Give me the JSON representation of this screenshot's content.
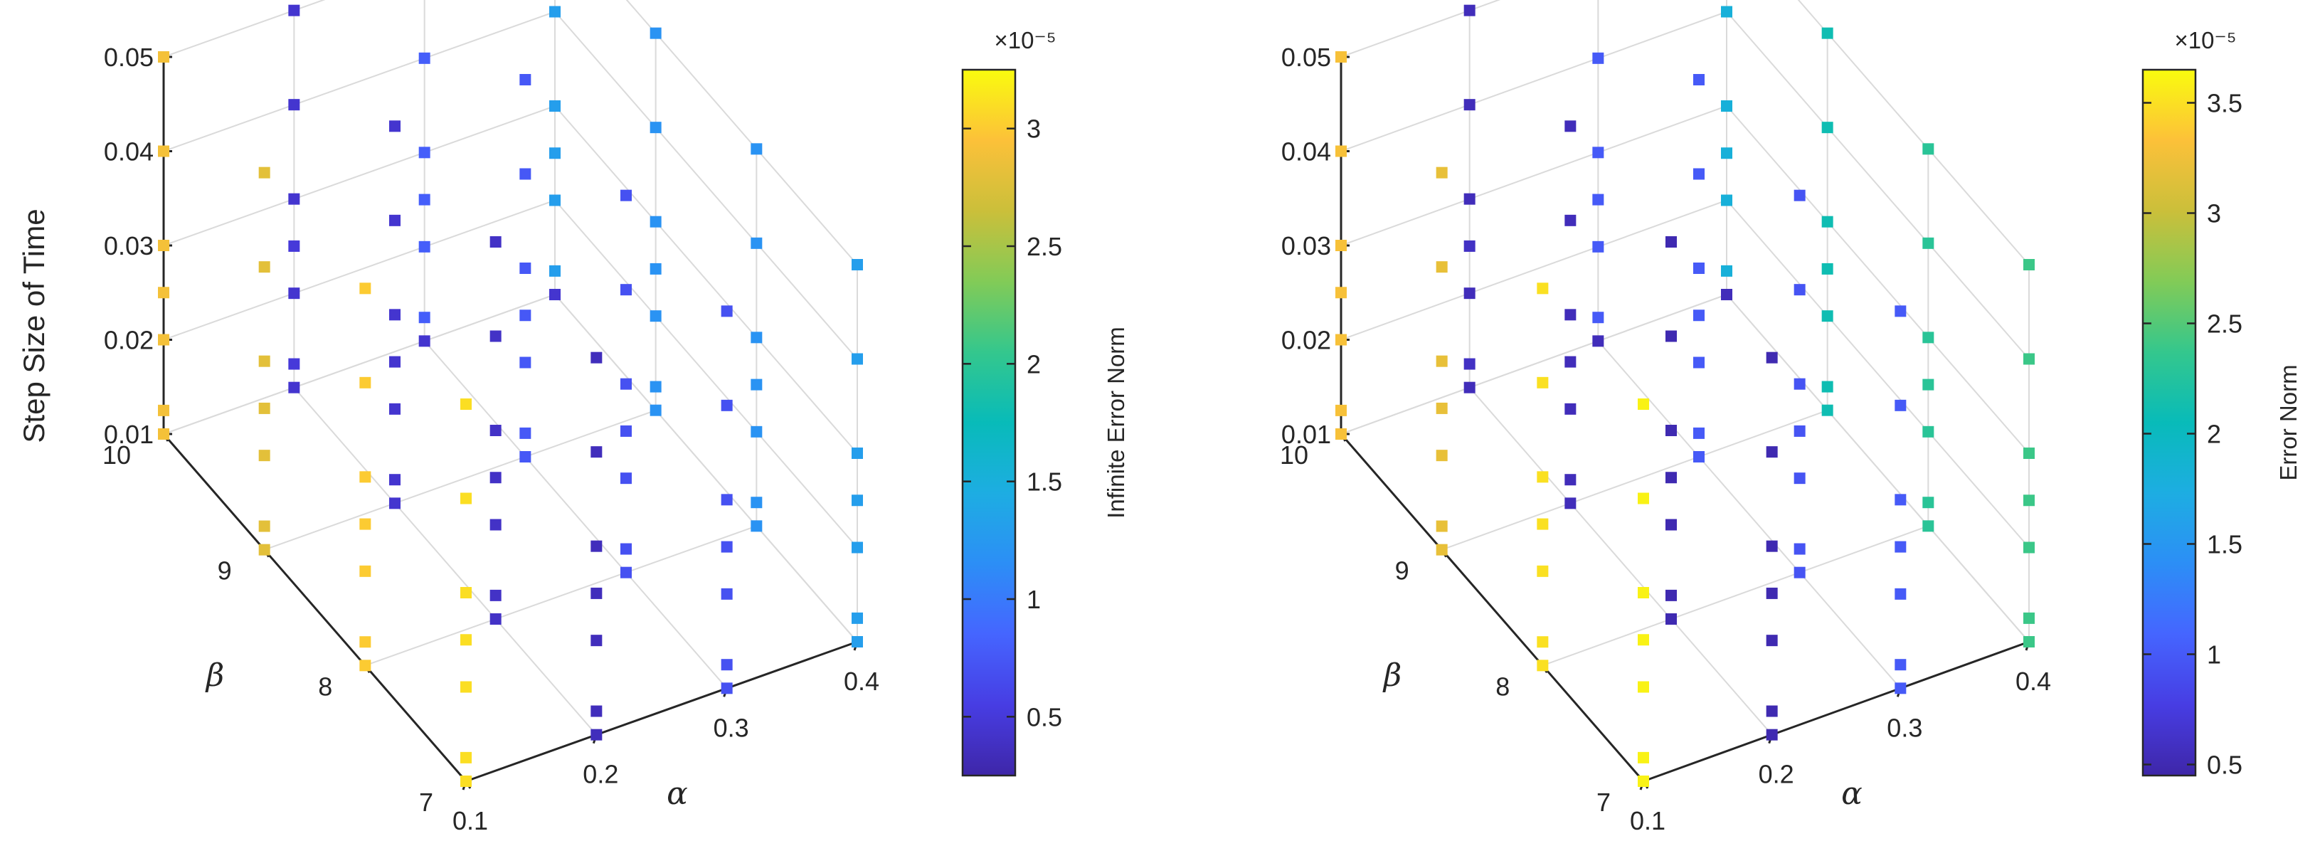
{
  "chart_data": [
    {
      "type": "scatter3d",
      "title": "",
      "xlabel": "α",
      "ylabel": "β",
      "zlabel": "Step Size of Time",
      "x_ticks": [
        "0.1",
        "0.2",
        "0.3",
        "0.4"
      ],
      "y_ticks": [
        "7",
        "8",
        "9",
        "10"
      ],
      "z_ticks": [
        "0.01",
        "0.02",
        "0.03",
        "0.04",
        "0.05"
      ],
      "xlim": [
        0.1,
        0.4
      ],
      "ylim": [
        7,
        10
      ],
      "zlim": [
        0.01,
        0.05
      ],
      "grid": true,
      "colorbar": {
        "label": "Infinite Error Norm",
        "exponent_label": "×10⁻⁵",
        "ticks": [
          "0.5",
          "1",
          "1.5",
          "2",
          "2.5",
          "3"
        ],
        "tick_values": [
          0.5,
          1,
          1.5,
          2,
          2.5,
          3
        ],
        "range": [
          0.25,
          3.25
        ]
      },
      "colormap": "parula",
      "marker": "square",
      "alphas": [
        0.1,
        0.2,
        0.3,
        0.4
      ],
      "betas": [
        7,
        8,
        9,
        10
      ],
      "timesteps": [
        0.01,
        0.0125,
        0.02,
        0.025,
        0.03,
        0.04,
        0.05
      ],
      "values_by_beta": {
        "10": [
          [
            2.9,
            0.45,
            0.45,
            0.45
          ],
          [
            2.9,
            0.5,
            0.8,
            1.3
          ],
          [
            2.9,
            0.45,
            0.8,
            1.3
          ],
          [
            2.9,
            0.5,
            0.8,
            1.3
          ],
          [
            2.9,
            0.45,
            0.8,
            1.3
          ],
          [
            2.9,
            0.45,
            0.8,
            1.3
          ],
          [
            2.9,
            0.45,
            0.8,
            1.3
          ]
        ],
        "9": [
          [
            2.8,
            0.45,
            0.75,
            1.2
          ],
          [
            2.8,
            0.45,
            0.75,
            1.2
          ],
          [
            2.8,
            0.45,
            0.75,
            1.2
          ],
          [
            2.8,
            0.45,
            0.75,
            1.2
          ],
          [
            2.8,
            0.45,
            0.75,
            1.2
          ],
          [
            2.8,
            0.45,
            0.75,
            1.2
          ],
          [
            2.8,
            0.45,
            0.75,
            1.2
          ]
        ],
        "8": [
          [
            3.0,
            0.4,
            0.7,
            1.2
          ],
          [
            3.0,
            0.4,
            0.7,
            1.2
          ],
          [
            3.0,
            0.4,
            0.7,
            1.2
          ],
          [
            3.0,
            0.4,
            0.7,
            1.2
          ],
          [
            3.0,
            0.4,
            0.7,
            1.2
          ],
          [
            3.0,
            0.4,
            0.7,
            1.2
          ],
          [
            3.0,
            0.4,
            0.7,
            1.2
          ]
        ],
        "7": [
          [
            3.1,
            0.35,
            0.7,
            1.3
          ],
          [
            3.1,
            0.35,
            0.7,
            1.3
          ],
          [
            3.1,
            0.35,
            0.7,
            1.3
          ],
          [
            3.1,
            0.35,
            0.7,
            1.3
          ],
          [
            3.1,
            0.35,
            0.7,
            1.3
          ],
          [
            3.1,
            0.35,
            0.7,
            1.3
          ],
          [
            3.1,
            0.35,
            0.7,
            1.3
          ]
        ]
      }
    },
    {
      "type": "scatter3d",
      "title": "",
      "xlabel": "α",
      "ylabel": "β",
      "zlabel": "",
      "x_ticks": [
        "0.1",
        "0.2",
        "0.3",
        "0.4"
      ],
      "y_ticks": [
        "7",
        "8",
        "9",
        "10"
      ],
      "z_ticks": [
        "0.01",
        "0.02",
        "0.03",
        "0.04",
        "0.05"
      ],
      "xlim": [
        0.1,
        0.4
      ],
      "ylim": [
        7,
        10
      ],
      "zlim": [
        0.01,
        0.05
      ],
      "grid": true,
      "colorbar": {
        "label": "Error Norm",
        "exponent_label": "×10⁻⁵",
        "ticks": [
          "0.5",
          "1",
          "1.5",
          "2",
          "2.5",
          "3",
          "3.5"
        ],
        "tick_values": [
          0.5,
          1,
          1.5,
          2,
          2.5,
          3,
          3.5
        ],
        "range": [
          0.45,
          3.65
        ]
      },
      "colormap": "parula",
      "marker": "square",
      "alphas": [
        0.1,
        0.2,
        0.3,
        0.4
      ],
      "betas": [
        7,
        8,
        9,
        10
      ],
      "timesteps": [
        0.01,
        0.0125,
        0.02,
        0.025,
        0.03,
        0.04,
        0.05
      ],
      "values_by_beta": {
        "10": [
          [
            3.3,
            0.55,
            0.55,
            0.55
          ],
          [
            3.3,
            0.6,
            1.0,
            1.8
          ],
          [
            3.3,
            0.55,
            1.0,
            1.8
          ],
          [
            3.3,
            0.6,
            1.0,
            1.8
          ],
          [
            3.3,
            0.55,
            1.0,
            1.8
          ],
          [
            3.3,
            0.55,
            1.0,
            1.8
          ],
          [
            3.3,
            0.55,
            1.0,
            1.8
          ]
        ],
        "9": [
          [
            3.2,
            0.55,
            1.0,
            2.1
          ],
          [
            3.2,
            0.55,
            1.0,
            2.1
          ],
          [
            3.2,
            0.55,
            1.0,
            2.1
          ],
          [
            3.2,
            0.55,
            1.0,
            2.1
          ],
          [
            3.2,
            0.55,
            1.0,
            2.1
          ],
          [
            3.2,
            0.55,
            1.0,
            2.1
          ],
          [
            3.2,
            0.55,
            1.0,
            2.1
          ]
        ],
        "8": [
          [
            3.5,
            0.5,
            0.95,
            2.3
          ],
          [
            3.5,
            0.5,
            0.95,
            2.3
          ],
          [
            3.5,
            0.5,
            0.95,
            2.3
          ],
          [
            3.5,
            0.5,
            0.95,
            2.3
          ],
          [
            3.5,
            0.5,
            0.95,
            2.3
          ],
          [
            3.5,
            0.5,
            0.95,
            2.3
          ],
          [
            3.5,
            0.5,
            0.95,
            2.3
          ]
        ],
        "7": [
          [
            3.6,
            0.5,
            1.0,
            2.4
          ],
          [
            3.6,
            0.5,
            1.0,
            2.4
          ],
          [
            3.6,
            0.5,
            1.0,
            2.4
          ],
          [
            3.6,
            0.5,
            1.0,
            2.4
          ],
          [
            3.6,
            0.5,
            1.0,
            2.4
          ],
          [
            3.6,
            0.5,
            1.0,
            2.4
          ],
          [
            3.6,
            0.5,
            1.0,
            2.4
          ]
        ]
      }
    }
  ]
}
